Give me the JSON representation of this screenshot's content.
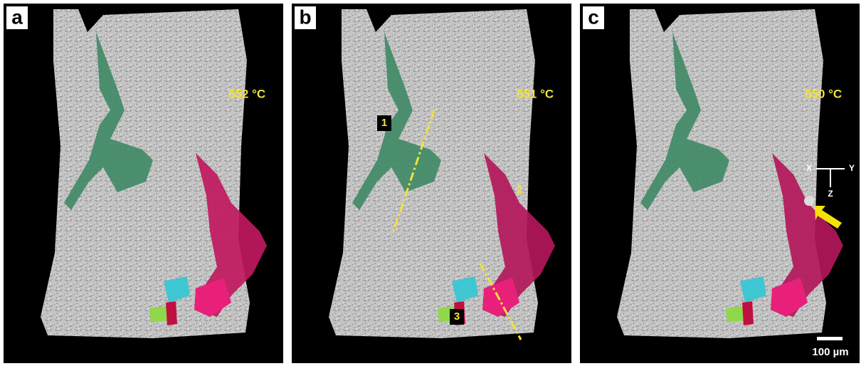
{
  "panels": [
    {
      "label": "a",
      "temperature": "552 °C",
      "annotations": []
    },
    {
      "label": "b",
      "temperature": "551 °C",
      "annotations": [
        "1",
        "2",
        "3"
      ]
    },
    {
      "label": "c",
      "temperature": "550 °C",
      "annotations": []
    }
  ],
  "axes": {
    "x": "X",
    "y": "Y",
    "z": "Z"
  },
  "scale_bar": "100 µm"
}
